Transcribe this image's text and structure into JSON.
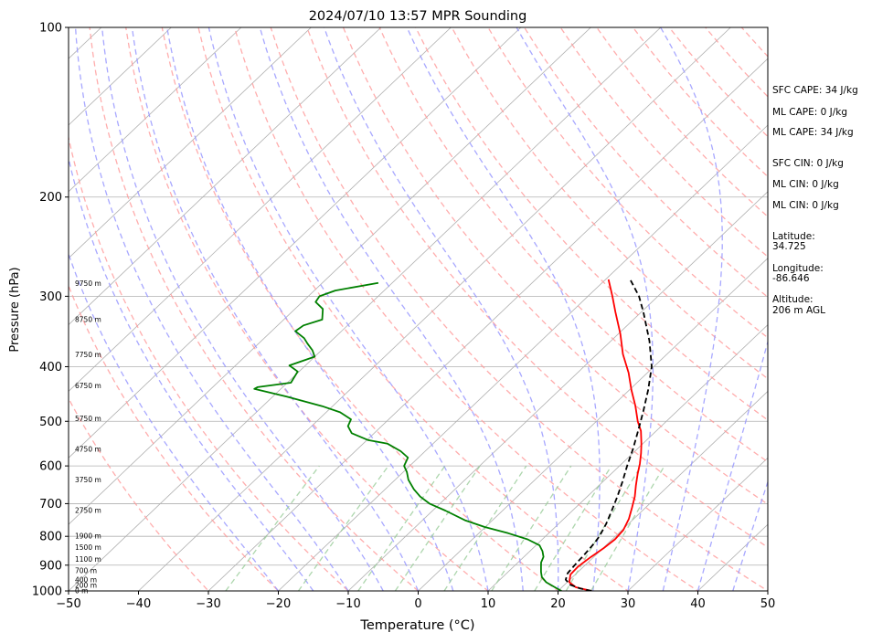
{
  "chart_data": {
    "type": "line",
    "subtype": "skew-T log-P sounding",
    "title": "2024/07/10 13:57 MPR Sounding",
    "xlabel": "Temperature (°C)",
    "ylabel": "Pressure (hPa)",
    "xlim": [
      -50,
      50
    ],
    "ylim": [
      1000,
      100
    ],
    "y_scale": "log",
    "x_ticks": [
      "−50",
      "−40",
      "−30",
      "−20",
      "−10",
      "0",
      "10",
      "20",
      "30",
      "40",
      "50"
    ],
    "x_tick_values": [
      -50,
      -40,
      -30,
      -20,
      -10,
      0,
      10,
      20,
      30,
      40,
      50
    ],
    "y_ticks": [
      "100",
      "200",
      "300",
      "400",
      "500",
      "600",
      "700",
      "800",
      "900",
      "1000"
    ],
    "y_tick_values": [
      100,
      200,
      300,
      400,
      500,
      600,
      700,
      800,
      900,
      1000
    ],
    "grid": true,
    "series": [
      {
        "key": "temperature",
        "style": "solid",
        "color": "#ff0000",
        "points": [
          [
            1000,
            24.8
          ],
          [
            985,
            22.0
          ],
          [
            965,
            20.3
          ],
          [
            935,
            19.3
          ],
          [
            905,
            19.2
          ],
          [
            870,
            19.6
          ],
          [
            840,
            20.1
          ],
          [
            810,
            20.4
          ],
          [
            780,
            20.2
          ],
          [
            745,
            19.3
          ],
          [
            710,
            18.0
          ],
          [
            680,
            16.8
          ],
          [
            650,
            15.3
          ],
          [
            620,
            13.8
          ],
          [
            595,
            12.6
          ],
          [
            570,
            11.2
          ],
          [
            548,
            9.8
          ],
          [
            520,
            7.8
          ],
          [
            500,
            5.9
          ],
          [
            470,
            3.3
          ],
          [
            440,
            0.3
          ],
          [
            410,
            -2.7
          ],
          [
            380,
            -6.3
          ],
          [
            350,
            -9.7
          ],
          [
            320,
            -13.7
          ],
          [
            300,
            -16.5
          ],
          [
            280,
            -19.6
          ]
        ]
      },
      {
        "key": "dewpoint",
        "style": "solid",
        "color": "#008000",
        "points": [
          [
            1000,
            20.5
          ],
          [
            985,
            19.0
          ],
          [
            965,
            17.0
          ],
          [
            945,
            15.6
          ],
          [
            925,
            14.7
          ],
          [
            905,
            13.9
          ],
          [
            890,
            13.3
          ],
          [
            870,
            12.8
          ],
          [
            850,
            11.8
          ],
          [
            830,
            10.5
          ],
          [
            810,
            7.9
          ],
          [
            790,
            4.2
          ],
          [
            770,
            -0.1
          ],
          [
            750,
            -3.8
          ],
          [
            720,
            -8.2
          ],
          [
            700,
            -11.5
          ],
          [
            680,
            -13.9
          ],
          [
            660,
            -15.9
          ],
          [
            635,
            -18.1
          ],
          [
            615,
            -19.5
          ],
          [
            600,
            -20.8
          ],
          [
            580,
            -21.5
          ],
          [
            565,
            -23.5
          ],
          [
            548,
            -26.5
          ],
          [
            540,
            -29.8
          ],
          [
            525,
            -33.2
          ],
          [
            510,
            -34.8
          ],
          [
            496,
            -35.4
          ],
          [
            482,
            -38.0
          ],
          [
            470,
            -41.5
          ],
          [
            452,
            -48.0
          ],
          [
            438,
            -53.8
          ],
          [
            435,
            -53.6
          ],
          [
            427,
            -49.5
          ],
          [
            408,
            -50.2
          ],
          [
            398,
            -52.3
          ],
          [
            384,
            -50.0
          ],
          [
            374,
            -51.3
          ],
          [
            364,
            -53.0
          ],
          [
            356,
            -54.3
          ],
          [
            346,
            -56.6
          ],
          [
            338,
            -56.3
          ],
          [
            330,
            -54.5
          ],
          [
            316,
            -56.0
          ],
          [
            307,
            -58.1
          ],
          [
            300,
            -58.4
          ],
          [
            293,
            -57.0
          ],
          [
            284,
            -52.0
          ]
        ]
      },
      {
        "key": "parcel",
        "style": "dashed",
        "color": "#000000",
        "points": [
          [
            1000,
            24.8
          ],
          [
            990,
            22.8
          ],
          [
            975,
            20.8
          ],
          [
            955,
            19.4
          ],
          [
            930,
            18.7
          ],
          [
            900,
            18.5
          ],
          [
            860,
            18.3
          ],
          [
            820,
            18.0
          ],
          [
            800,
            17.7
          ],
          [
            760,
            16.8
          ],
          [
            720,
            15.6
          ],
          [
            680,
            14.3
          ],
          [
            640,
            12.8
          ],
          [
            600,
            11.1
          ],
          [
            560,
            9.4
          ],
          [
            520,
            7.4
          ],
          [
            480,
            5.2
          ],
          [
            440,
            2.7
          ],
          [
            400,
            -0.3
          ],
          [
            360,
            -4.5
          ],
          [
            320,
            -9.7
          ],
          [
            300,
            -12.7
          ],
          [
            280,
            -16.5
          ]
        ]
      }
    ],
    "height_labels": [
      {
        "text": "0 m",
        "p": 1000
      },
      {
        "text": "200 m",
        "p": 978
      },
      {
        "text": "400 m",
        "p": 956
      },
      {
        "text": "700 m",
        "p": 921
      },
      {
        "text": "1100 m",
        "p": 880
      },
      {
        "text": "1500 m",
        "p": 837
      },
      {
        "text": "1900 m",
        "p": 800
      },
      {
        "text": "2750 m",
        "p": 720
      },
      {
        "text": "3750 m",
        "p": 636
      },
      {
        "text": "4750 m",
        "p": 561
      },
      {
        "text": "5750 m",
        "p": 495
      },
      {
        "text": "6750 m",
        "p": 433
      },
      {
        "text": "7750 m",
        "p": 381
      },
      {
        "text": "8750 m",
        "p": 330
      },
      {
        "text": "9750 m",
        "p": 285
      }
    ],
    "reference_lines": {
      "isotherms": {
        "color": "#b0b0b0"
      },
      "dry_adiabats": {
        "color": "#ff9999",
        "style": "dashed"
      },
      "moist_adiabats": {
        "color": "#9999ff",
        "style": "dashed"
      },
      "mixing_ratio": {
        "color": "#99cc99",
        "style": "dashed"
      }
    }
  },
  "stats": {
    "sfc_cape": "SFC CAPE: 34 J/kg",
    "ml_cape_1": "ML CAPE: 0 J/kg",
    "ml_cape_2": "ML CAPE: 34 J/kg",
    "sfc_cin": "SFC CIN: 0 J/kg",
    "ml_cin_1": "ML CIN: 0 J/kg",
    "ml_cin_2": "ML CIN: 0 J/kg",
    "latitude_label": "Latitude:",
    "latitude_value": "34.725",
    "longitude_label": "Longitude:",
    "longitude_value": "-86.646",
    "altitude_label": "Altitude:",
    "altitude_value": "206 m AGL"
  }
}
